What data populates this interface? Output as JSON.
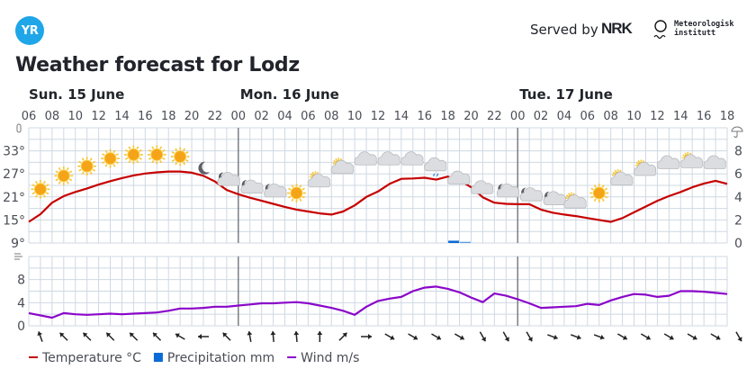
{
  "header": {
    "logo_text": "YR",
    "served_by": "Served by",
    "nrk": "NRK",
    "met_line1": "Meteorologisk",
    "met_line2": "institutt"
  },
  "title": "Weather forecast for Lodz",
  "chart_data": {
    "type": "line",
    "title": "Weather forecast for Lodz",
    "days": [
      {
        "label": "Sun. 15 June",
        "start_hour_index": 0
      },
      {
        "label": "Mon. 16 June",
        "start_hour_index": 18
      },
      {
        "label": "Tue. 17 June",
        "start_hour_index": 42
      }
    ],
    "hour_ticks": [
      "06",
      "08",
      "10",
      "12",
      "14",
      "16",
      "18",
      "20",
      "22",
      "00",
      "02",
      "04",
      "06",
      "08",
      "10",
      "12",
      "14",
      "16",
      "18",
      "20",
      "22",
      "00",
      "02",
      "04",
      "06",
      "08",
      "10",
      "12",
      "14",
      "16",
      "18"
    ],
    "temperature_axis": {
      "ticks": [
        "9°",
        "15°",
        "21°",
        "27°",
        "33°"
      ],
      "range": [
        9,
        39
      ],
      "unit": "°C"
    },
    "precipitation_axis": {
      "ticks": [
        "0",
        "2",
        "4",
        "6",
        "8"
      ],
      "range": [
        0,
        10
      ],
      "unit": "mm"
    },
    "wind_axis": {
      "ticks": [
        "0",
        "4",
        "8"
      ],
      "range": [
        0,
        12
      ],
      "unit": "m/s"
    },
    "hours_from_start": [
      0,
      1,
      2,
      3,
      4,
      5,
      6,
      7,
      8,
      9,
      10,
      11,
      12,
      13,
      14,
      15,
      16,
      17,
      18,
      19,
      20,
      21,
      22,
      23,
      24,
      25,
      26,
      27,
      28,
      29,
      30,
      31,
      32,
      33,
      34,
      35,
      36,
      37,
      38,
      39,
      40,
      41,
      42,
      43,
      44,
      45,
      46,
      47,
      48,
      49,
      50,
      51,
      52,
      53,
      54,
      55,
      56,
      57,
      58,
      59,
      60
    ],
    "series": [
      {
        "name": "Temperature °C",
        "color": "#c60000",
        "values": [
          14.5,
          16.5,
          19.5,
          21.2,
          22.3,
          23.2,
          24.2,
          25.1,
          25.9,
          26.6,
          27.1,
          27.4,
          27.6,
          27.6,
          27.3,
          26.5,
          25.0,
          22.8,
          21.7,
          20.8,
          20.0,
          19.2,
          18.4,
          17.7,
          17.2,
          16.7,
          16.4,
          17.2,
          18.8,
          21.0,
          22.4,
          24.4,
          25.7,
          25.8,
          26.0,
          25.5,
          26.3,
          25.4,
          23.5,
          20.9,
          19.5,
          19.2,
          19.1,
          19.1,
          17.7,
          16.9,
          16.4,
          16.0,
          15.5,
          15.0,
          14.5,
          15.5,
          17.0,
          18.5,
          20.0,
          21.2,
          22.3,
          23.5,
          24.5,
          25.2,
          24.4
        ]
      },
      {
        "name": "Precipitation mm",
        "color": "#0b6bd6",
        "values": [
          0,
          0,
          0,
          0,
          0,
          0,
          0,
          0,
          0,
          0,
          0,
          0,
          0,
          0,
          0,
          0,
          0,
          0,
          0,
          0,
          0,
          0,
          0,
          0,
          0,
          0,
          0,
          0,
          0,
          0,
          0,
          0,
          0,
          0,
          0,
          0,
          0.2,
          0.1,
          0,
          0,
          0,
          0,
          0,
          0,
          0,
          0,
          0,
          0,
          0,
          0,
          0,
          0,
          0,
          0,
          0,
          0,
          0,
          0,
          0,
          0,
          0
        ]
      },
      {
        "name": "Wind m/s",
        "color": "#8a06c9",
        "values": [
          2.2,
          1.8,
          1.4,
          2.2,
          2.0,
          1.9,
          2.0,
          2.1,
          2.0,
          2.1,
          2.2,
          2.3,
          2.6,
          3.0,
          3.0,
          3.1,
          3.3,
          3.3,
          3.5,
          3.7,
          3.9,
          3.9,
          4.0,
          4.1,
          3.9,
          3.5,
          3.1,
          2.6,
          1.9,
          3.3,
          4.3,
          4.7,
          5.0,
          6.0,
          6.6,
          6.8,
          6.4,
          5.8,
          4.9,
          4.1,
          5.6,
          5.2,
          4.6,
          3.9,
          3.1,
          3.2,
          3.3,
          3.4,
          3.8,
          3.6,
          4.4,
          5.0,
          5.5,
          5.4,
          5.0,
          5.2,
          6.0,
          6.0,
          5.9,
          5.7,
          5.5
        ]
      }
    ],
    "weather_symbols": [
      {
        "hour": 1,
        "type": "sun",
        "temp_level": 23
      },
      {
        "hour": 3,
        "type": "sun",
        "temp_level": 26.5
      },
      {
        "hour": 5,
        "type": "sun",
        "temp_level": 29
      },
      {
        "hour": 7,
        "type": "sun",
        "temp_level": 31
      },
      {
        "hour": 9,
        "type": "sun",
        "temp_level": 32
      },
      {
        "hour": 11,
        "type": "sun",
        "temp_level": 32
      },
      {
        "hour": 13,
        "type": "sun",
        "temp_level": 31.5
      },
      {
        "hour": 15,
        "type": "moon",
        "temp_level": 28.5
      },
      {
        "hour": 17,
        "type": "moon-cloud",
        "temp_level": 25.5
      },
      {
        "hour": 19,
        "type": "moon-cloud",
        "temp_level": 23.5
      },
      {
        "hour": 21,
        "type": "moon-cloud",
        "temp_level": 22.5
      },
      {
        "hour": 23,
        "type": "sun",
        "temp_level": 22
      },
      {
        "hour": 25,
        "type": "sun-cloud",
        "temp_level": 25
      },
      {
        "hour": 27,
        "type": "sun-cloud",
        "temp_level": 28.5
      },
      {
        "hour": 29,
        "type": "cloud",
        "temp_level": 30.5
      },
      {
        "hour": 31,
        "type": "cloud",
        "temp_level": 30.5
      },
      {
        "hour": 33,
        "type": "cloud",
        "temp_level": 30.5
      },
      {
        "hour": 35,
        "type": "cloud-rain",
        "temp_level": 28.5
      },
      {
        "hour": 37,
        "type": "cloud",
        "temp_level": 25.5
      },
      {
        "hour": 39,
        "type": "cloud",
        "temp_level": 23
      },
      {
        "hour": 41,
        "type": "moon-cloud",
        "temp_level": 22.5
      },
      {
        "hour": 43,
        "type": "moon-cloud",
        "temp_level": 21.5
      },
      {
        "hour": 45,
        "type": "moon-cloud",
        "temp_level": 20.5
      },
      {
        "hour": 47,
        "type": "sun-cloud",
        "temp_level": 19.5
      },
      {
        "hour": 49,
        "type": "sun",
        "temp_level": 22
      },
      {
        "hour": 51,
        "type": "sun-cloud",
        "temp_level": 25.5
      },
      {
        "hour": 53,
        "type": "sun-cloud",
        "temp_level": 28
      },
      {
        "hour": 55,
        "type": "cloud",
        "temp_level": 29.5
      },
      {
        "hour": 57,
        "type": "sun-cloud",
        "temp_level": 30
      },
      {
        "hour": 59,
        "type": "cloud",
        "temp_level": 29.5
      }
    ],
    "wind_directions_deg": [
      160,
      135,
      135,
      135,
      135,
      135,
      120,
      90,
      135,
      170,
      175,
      175,
      180,
      225,
      270,
      300,
      300,
      300,
      300,
      330,
      330,
      330,
      290,
      290,
      290,
      300,
      300,
      300,
      300,
      300,
      330
    ],
    "legend": [
      {
        "label": "Temperature °C",
        "color": "#c60000",
        "kind": "line"
      },
      {
        "label": "Precipitation mm",
        "color": "#0b6bd6",
        "kind": "box"
      },
      {
        "label": "Wind m/s",
        "color": "#8a06c9",
        "kind": "line"
      }
    ],
    "legend_position": "bottom-left",
    "grid": true
  }
}
